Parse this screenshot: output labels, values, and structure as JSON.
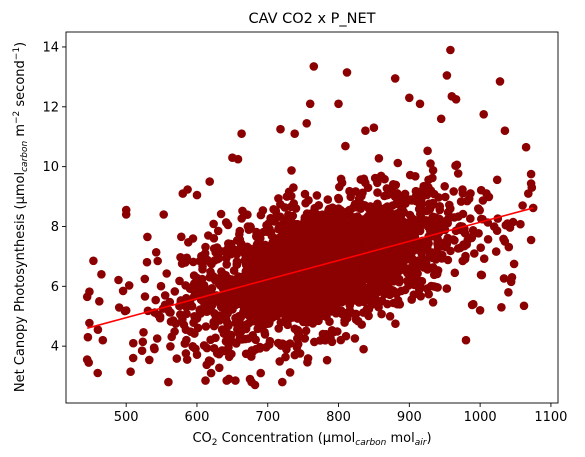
{
  "chart_data": {
    "type": "scatter",
    "title": "CAV CO2 x P_NET",
    "xlabel": {
      "prefix": "CO",
      "sub1": "2",
      "middle": " Concentration (µmol",
      "sub2": "carbon",
      "middle2": " mol",
      "sub3": "air",
      "suffix": ")"
    },
    "ylabel": {
      "prefix": "Net Canopy Photosynthesis (µmol",
      "sub1": "carbon",
      "middle": " m",
      "sup1": "−2",
      "middle2": " second",
      "sup2": "−1",
      "suffix": ")"
    },
    "xlim": [
      415,
      1110
    ],
    "ylim": [
      2.1,
      14.5
    ],
    "xticks": [
      500,
      600,
      700,
      800,
      900,
      1000,
      1100
    ],
    "yticks": [
      4,
      6,
      8,
      10,
      12,
      14
    ],
    "grid": false,
    "marker_color": "#8b0000",
    "fit_color": "#ff0000",
    "fit_line": {
      "x": [
        445,
        1075
      ],
      "y": [
        4.6,
        8.62
      ]
    },
    "cloud": {
      "center_x": 775,
      "center_y": 6.7,
      "x_spread": 95,
      "slope": 0.0064,
      "y_spread": 1.05,
      "n_points": 2600
    },
    "outliers": [
      [
        445,
        5.65
      ],
      [
        445,
        3.55
      ],
      [
        447,
        3.45
      ],
      [
        446,
        4.3
      ],
      [
        460,
        4.55
      ],
      [
        462,
        5.5
      ],
      [
        465,
        6.4
      ],
      [
        467,
        4.2
      ],
      [
        500,
        8.55
      ],
      [
        500,
        8.4
      ],
      [
        510,
        4.1
      ],
      [
        530,
        7.65
      ],
      [
        553,
        8.4
      ],
      [
        612,
        2.85
      ],
      [
        618,
        9.5
      ],
      [
        620,
        3.1
      ],
      [
        642,
        2.85
      ],
      [
        658,
        10.25
      ],
      [
        663,
        11.1
      ],
      [
        682,
        2.7
      ],
      [
        690,
        3.1
      ],
      [
        718,
        11.25
      ],
      [
        738,
        11.1
      ],
      [
        755,
        11.45
      ],
      [
        760,
        12.1
      ],
      [
        765,
        13.35
      ],
      [
        800,
        12.1
      ],
      [
        812,
        13.15
      ],
      [
        838,
        11.2
      ],
      [
        850,
        11.3
      ],
      [
        880,
        12.95
      ],
      [
        915,
        12.1
      ],
      [
        945,
        11.6
      ],
      [
        953,
        13.05
      ],
      [
        958,
        13.9
      ],
      [
        960,
        12.35
      ],
      [
        966,
        12.25
      ],
      [
        1005,
        11.75
      ],
      [
        1028,
        12.85
      ],
      [
        1035,
        11.2
      ],
      [
        1040,
        5.8
      ],
      [
        1045,
        6.3
      ],
      [
        1062,
        5.35
      ],
      [
        1065,
        10.65
      ],
      [
        1068,
        9.1
      ],
      [
        1072,
        9.75
      ],
      [
        1073,
        9.3
      ],
      [
        1075,
        8.62
      ],
      [
        1060,
        8.7
      ],
      [
        980,
        4.2
      ],
      [
        1000,
        5.2
      ],
      [
        1030,
        5.3
      ],
      [
        1048,
        6.75
      ],
      [
        540,
        3.9
      ],
      [
        580,
        9.1
      ],
      [
        600,
        9.05
      ],
      [
        650,
        10.3
      ],
      [
        900,
        12.3
      ]
    ]
  }
}
